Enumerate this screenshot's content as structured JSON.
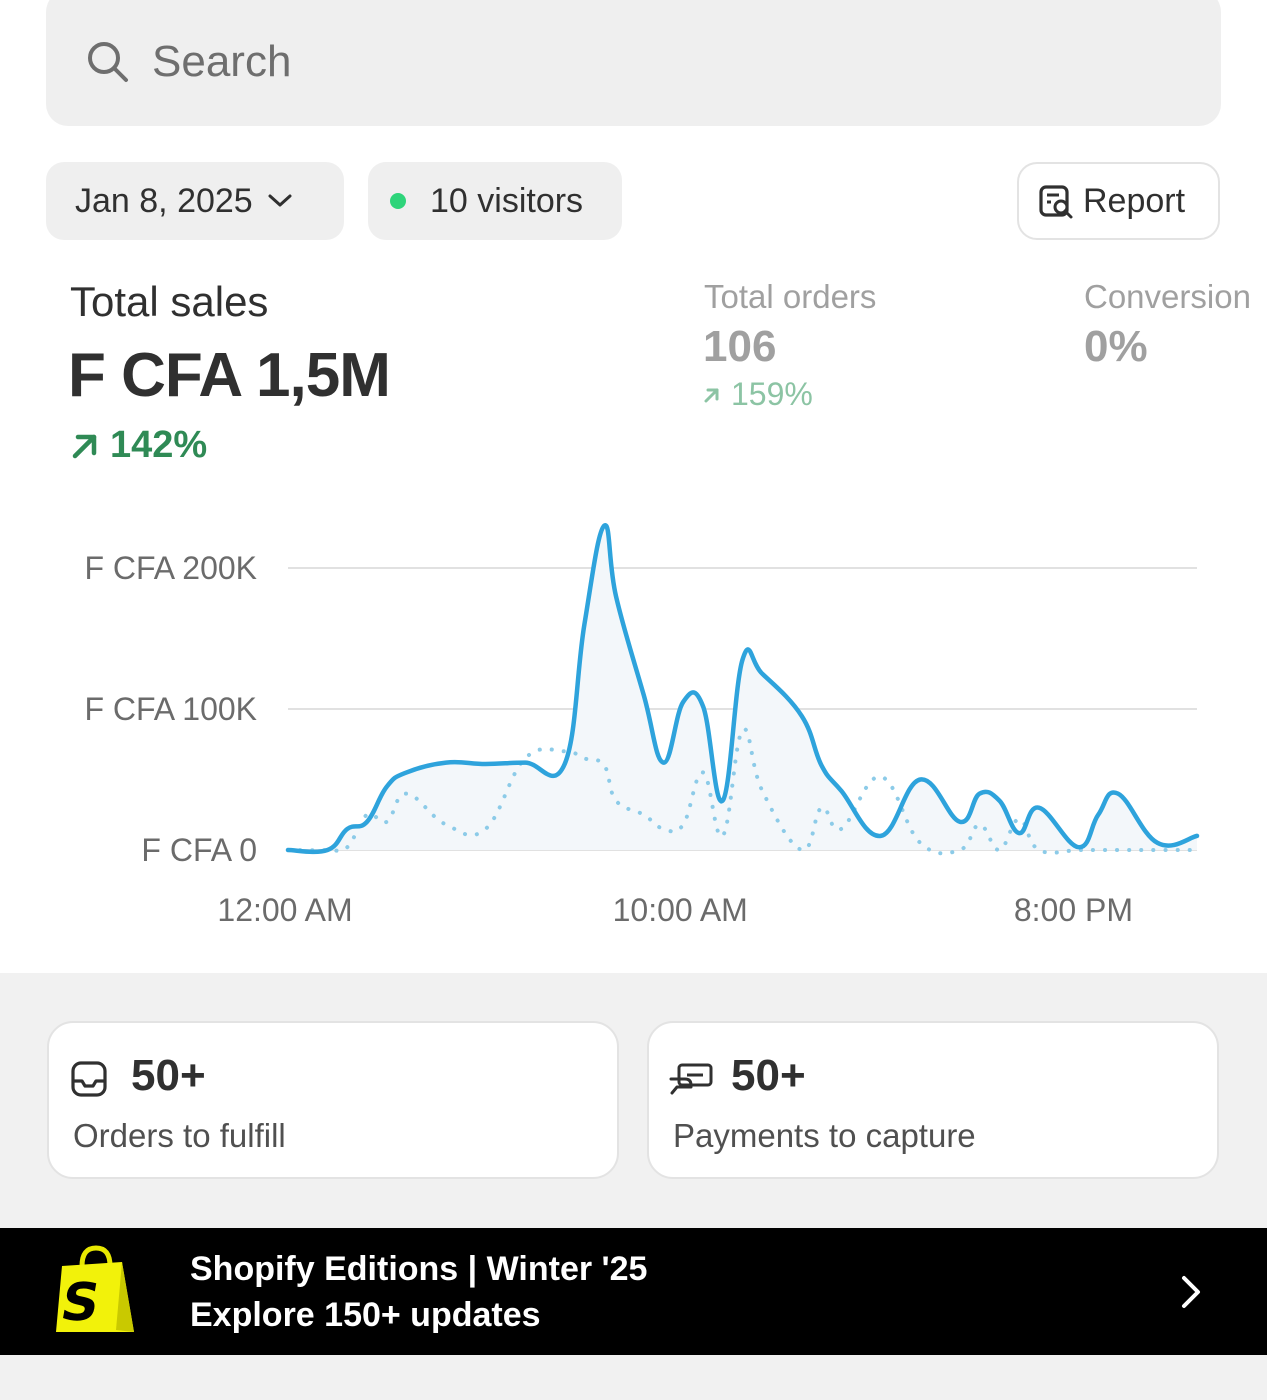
{
  "search": {
    "placeholder": "Search"
  },
  "filters": {
    "date_label": "Jan 8, 2025",
    "visitors_label": "10 visitors",
    "report_label": "Report"
  },
  "metrics": {
    "total_sales": {
      "label": "Total sales",
      "value": "F CFA 1,5M",
      "change": "142%"
    },
    "total_orders": {
      "label": "Total orders",
      "value": "106",
      "change": "159%"
    },
    "conversion": {
      "label": "Conversion",
      "value": "0%"
    }
  },
  "chart_data": {
    "type": "line",
    "y_ticks": [
      "F CFA 0",
      "F CFA 100K",
      "F CFA 200K"
    ],
    "x_ticks": [
      "12:00 AM",
      "10:00 AM",
      "8:00 PM"
    ],
    "ylim": [
      0,
      230000
    ],
    "x": [
      0,
      1,
      1.5,
      2,
      2.5,
      3,
      4,
      5,
      6,
      7,
      7.5,
      8,
      8.3,
      9,
      9.5,
      10,
      10.5,
      11,
      11.5,
      12,
      13,
      13.5,
      14,
      15,
      16,
      17,
      17.5,
      18,
      18.5,
      19,
      20,
      20.5,
      21,
      22,
      23
    ],
    "series": [
      {
        "values": [
          0,
          0,
          15000,
          20000,
          45000,
          55000,
          62000,
          61000,
          62000,
          61000,
          160000,
          230000,
          180000,
          110000,
          62000,
          105000,
          102000,
          35000,
          135000,
          125000,
          95000,
          60000,
          42000,
          10000,
          50000,
          20000,
          40000,
          35000,
          12000,
          30000,
          2000,
          25000,
          40000,
          5000,
          10000
        ],
        "style": "solid",
        "color": "#2ea3dc"
      },
      {
        "values": [
          0,
          0,
          2000,
          25000,
          20000,
          40000,
          18000,
          15000,
          65000,
          70000,
          65000,
          60000,
          35000,
          25000,
          15000,
          18000,
          55000,
          10000,
          85000,
          42000,
          0,
          30000,
          15000,
          52000,
          5000,
          0,
          18000,
          0,
          22000,
          0,
          0,
          0,
          0,
          0,
          0
        ],
        "style": "dotted",
        "color": "#8ccbe8"
      }
    ],
    "grid": true
  },
  "cards": [
    {
      "value": "50+",
      "label": "Orders to fulfill",
      "icon": "inbox-icon"
    },
    {
      "value": "50+",
      "label": "Payments to capture",
      "icon": "cash-icon"
    }
  ],
  "banner": {
    "line1": "Shopify Editions | Winter '25",
    "line2": "Explore 150+ updates"
  }
}
